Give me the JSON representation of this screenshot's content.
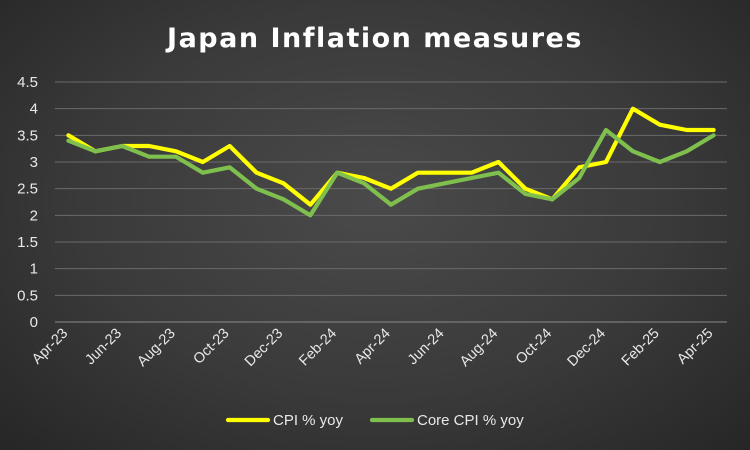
{
  "chart_data": {
    "type": "line",
    "title": "Japan Inflation measures",
    "xlabel": "",
    "ylabel": "",
    "ylim": [
      0,
      4.5
    ],
    "ytick_labels": [
      "0",
      "0.5",
      "1",
      "1.5",
      "2",
      "2.5",
      "3",
      "3.5",
      "4",
      "4.5"
    ],
    "x": [
      "Apr-23",
      "May-23",
      "Jun-23",
      "Jul-23",
      "Aug-23",
      "Sep-23",
      "Oct-23",
      "Nov-23",
      "Dec-23",
      "Jan-24",
      "Feb-24",
      "Mar-24",
      "Apr-24",
      "May-24",
      "Jun-24",
      "Jul-24",
      "Aug-24",
      "Sep-24",
      "Oct-24",
      "Nov-24",
      "Dec-24",
      "Jan-25",
      "Feb-25",
      "Mar-25",
      "Apr-25"
    ],
    "xtick_labels": [
      "Apr-23",
      "Jun-23",
      "Aug-23",
      "Oct-23",
      "Dec-23",
      "Feb-24",
      "Apr-24",
      "Jun-24",
      "Aug-24",
      "Oct-24",
      "Dec-24",
      "Feb-25",
      "Apr-25"
    ],
    "grid": true,
    "legend_position": "bottom",
    "series": [
      {
        "name": "CPI % yoy",
        "color": "#ffff00",
        "values": [
          3.5,
          3.2,
          3.3,
          3.3,
          3.2,
          3.0,
          3.3,
          2.8,
          2.6,
          2.2,
          2.8,
          2.7,
          2.5,
          2.8,
          2.8,
          2.8,
          3.0,
          2.5,
          2.3,
          2.9,
          3.0,
          4.0,
          3.7,
          3.6,
          3.6
        ]
      },
      {
        "name": "Core CPI % yoy",
        "color": "#7fbf4d",
        "values": [
          3.4,
          3.2,
          3.3,
          3.1,
          3.1,
          2.8,
          2.9,
          2.5,
          2.3,
          2.0,
          2.8,
          2.6,
          2.2,
          2.5,
          2.6,
          2.7,
          2.8,
          2.4,
          2.3,
          2.7,
          3.6,
          3.2,
          3.0,
          3.2,
          3.5
        ]
      }
    ]
  }
}
